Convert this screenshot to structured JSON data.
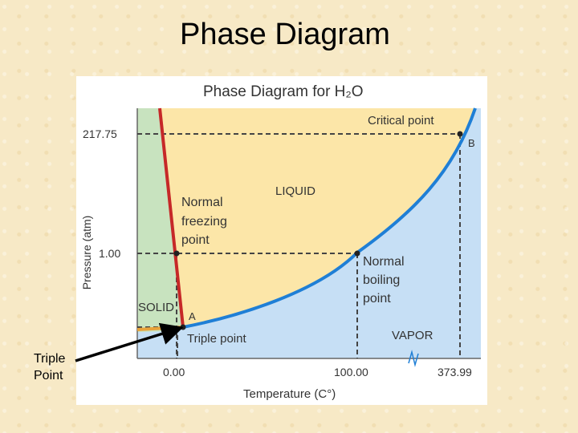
{
  "slide": {
    "title": "Phase Diagram",
    "annotation": [
      "Triple",
      "Point"
    ]
  },
  "diagram": {
    "title": "Phase Diagram for H₂O",
    "xlabel": "Temperature (C°)",
    "ylabel": "Pressure (atm)",
    "x_ticks": [
      "0.00",
      "100.00",
      "373.99"
    ],
    "y_ticks": [
      "217.75",
      "1.00"
    ],
    "regions": {
      "solid": "SOLID",
      "liquid": "LIQUID",
      "vapor": "VAPOR"
    },
    "points": {
      "critical": "Critical point",
      "critical_letter": "B",
      "triple": "Triple point",
      "triple_letter": "A",
      "freezing": [
        "Normal",
        "freezing",
        "point"
      ],
      "boiling": [
        "Normal",
        "boiling",
        "point"
      ]
    },
    "colors": {
      "solid": "#c8e3bf",
      "liquid": "#fce6a8",
      "vapor": "#c6dff5",
      "fusion_curve": "#c62828",
      "vaporization_curve": "#1f7fd6",
      "sublimation_curve": "#e8a23a"
    }
  }
}
